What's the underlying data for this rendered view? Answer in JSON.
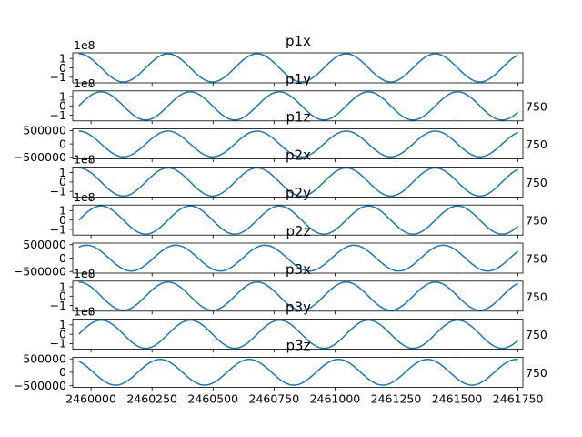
{
  "chart_data": {
    "type": "line",
    "layout": "9 stacked subplots sharing x",
    "line_color": "#1f77b4",
    "grid": false,
    "x_tick_labels": [
      "2460000",
      "2460250",
      "2460500",
      "2460750",
      "2461000",
      "2461250",
      "2461500",
      "2461750"
    ],
    "xlim": [
      2459925,
      2461770
    ],
    "x_start": 2459950,
    "x_end": 2461750,
    "subplots": [
      {
        "title": "p1x",
        "offset_text": "1e8",
        "right_label": "",
        "y_tick_labels": [
          "1",
          "0",
          "−1"
        ],
        "ylim": [
          -160000000.0,
          160000000.0
        ],
        "amplitude": 150000000.0,
        "period": 365.25,
        "phase": 0
      },
      {
        "title": "p1y",
        "offset_text": "1e8",
        "right_label": "750",
        "y_tick_labels": [
          "1",
          "0",
          "−1"
        ],
        "ylim": [
          -160000000.0,
          160000000.0
        ],
        "amplitude": 150000000.0,
        "period": 365.25,
        "phase": 91.3
      },
      {
        "title": "p1z",
        "offset_text": "",
        "right_label": "750",
        "y_tick_labels": [
          "500000",
          "0",
          "−500000"
        ],
        "ylim": [
          -560000,
          560000
        ],
        "amplitude": 480000,
        "period": 365.25,
        "phase": 0
      },
      {
        "title": "p2x",
        "offset_text": "1e8",
        "right_label": "750",
        "y_tick_labels": [
          "1",
          "0",
          "−1"
        ],
        "ylim": [
          -160000000.0,
          160000000.0
        ],
        "amplitude": 150000000.0,
        "period": 365.25,
        "phase": 0
      },
      {
        "title": "p2y",
        "offset_text": "1e8",
        "right_label": "750",
        "y_tick_labels": [
          "1",
          "0",
          "−1"
        ],
        "ylim": [
          -160000000.0,
          160000000.0
        ],
        "amplitude": 150000000.0,
        "period": 365.25,
        "phase": 91.3
      },
      {
        "title": "p2z",
        "offset_text": "",
        "right_label": "750",
        "y_tick_labels": [
          "500000",
          "0",
          "−500000"
        ],
        "ylim": [
          -560000,
          560000
        ],
        "amplitude": 480000,
        "period": 365.25,
        "phase": 32
      },
      {
        "title": "p3x",
        "offset_text": "1e8",
        "right_label": "750",
        "y_tick_labels": [
          "1",
          "0",
          "−1"
        ],
        "ylim": [
          -160000000.0,
          160000000.0
        ],
        "amplitude": 150000000.0,
        "period": 365.25,
        "phase": 0
      },
      {
        "title": "p3y",
        "offset_text": "1e8",
        "right_label": "750",
        "y_tick_labels": [
          "1",
          "0",
          "−1"
        ],
        "ylim": [
          -160000000.0,
          160000000.0
        ],
        "amplitude": 150000000.0,
        "period": 365.25,
        "phase": 91.3
      },
      {
        "title": "p3z",
        "offset_text": "",
        "right_label": "750",
        "y_tick_labels": [
          "500000",
          "0",
          "−500000"
        ],
        "ylim": [
          -560000,
          560000
        ],
        "amplitude": 480000,
        "period": 365.25,
        "phase": -32
      }
    ]
  }
}
